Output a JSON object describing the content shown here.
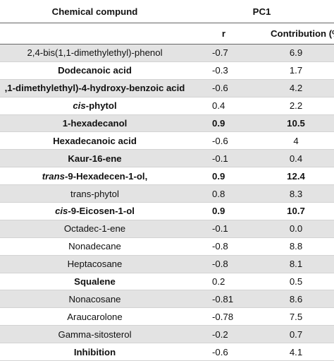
{
  "header": {
    "compound_label": "Chemical compund",
    "pc_label": "PC1",
    "r_label": "r",
    "contribution_label": "Contribution (%"
  },
  "rows": [
    {
      "pre": "",
      "it": "",
      "post": "2,4-bis(1,1-dimethylethyl)-phenol",
      "r": "-0.7",
      "c": "6.9",
      "bold": false,
      "rbold": false
    },
    {
      "pre": "",
      "it": "",
      "post": "Dodecanoic acid",
      "r": "-0.3",
      "c": "1.7",
      "bold": true,
      "rbold": false
    },
    {
      "pre": "",
      "it": "",
      "post": ",1-dimethylethyl)-4-hydroxy-benzoic acid",
      "r": "-0.6",
      "c": "4.2",
      "bold": true,
      "rbold": false
    },
    {
      "pre": "",
      "it": "cis",
      "post": "-phytol",
      "r": "0.4",
      "c": "2.2",
      "bold": true,
      "rbold": false
    },
    {
      "pre": "",
      "it": "",
      "post": "1-hexadecanol",
      "r": "0.9",
      "c": "10.5",
      "bold": true,
      "rbold": true
    },
    {
      "pre": "",
      "it": "",
      "post": "Hexadecanoic acid",
      "r": "-0.6",
      "c": "4",
      "bold": true,
      "rbold": false
    },
    {
      "pre": "",
      "it": "",
      "post": "Kaur-16-ene",
      "r": "-0.1",
      "c": "0.4",
      "bold": true,
      "rbold": false
    },
    {
      "pre": "",
      "it": "trans",
      "post": "-9-Hexadecen-1-ol,",
      "r": "0.9",
      "c": "12.4",
      "bold": true,
      "rbold": true
    },
    {
      "pre": "",
      "it": "",
      "post": "trans-phytol",
      "r": "0.8",
      "c": "8.3",
      "bold": false,
      "rbold": false
    },
    {
      "pre": "",
      "it": "cis",
      "post": "-9-Eicosen-1-ol",
      "r": "0.9",
      "c": "10.7",
      "bold": true,
      "rbold": true
    },
    {
      "pre": "",
      "it": "",
      "post": "Octadec-1-ene",
      "r": "-0.1",
      "c": "0.0",
      "bold": false,
      "rbold": false
    },
    {
      "pre": "",
      "it": "",
      "post": "Nonadecane",
      "r": "-0.8",
      "c": "8.8",
      "bold": false,
      "rbold": false
    },
    {
      "pre": "",
      "it": "",
      "post": "Heptacosane",
      "r": "-0.8",
      "c": "8.1",
      "bold": false,
      "rbold": false
    },
    {
      "pre": "",
      "it": "",
      "post": "Squalene",
      "r": "0.2",
      "c": "0.5",
      "bold": true,
      "rbold": false
    },
    {
      "pre": "",
      "it": "",
      "post": "Nonacosane",
      "r": "-0.81",
      "c": "8.6",
      "bold": false,
      "rbold": false
    },
    {
      "pre": "",
      "it": "",
      "post": "Araucarolone",
      "r": "-0.78",
      "c": "7.5",
      "bold": false,
      "rbold": false
    },
    {
      "pre": "",
      "it": "",
      "post": "Gamma-sitosterol",
      "r": "-0.2",
      "c": "0.7",
      "bold": false,
      "rbold": false
    },
    {
      "pre": "",
      "it": "",
      "post": "Inhibition",
      "r": "-0.6",
      "c": "4.1",
      "bold": true,
      "rbold": false
    }
  ]
}
